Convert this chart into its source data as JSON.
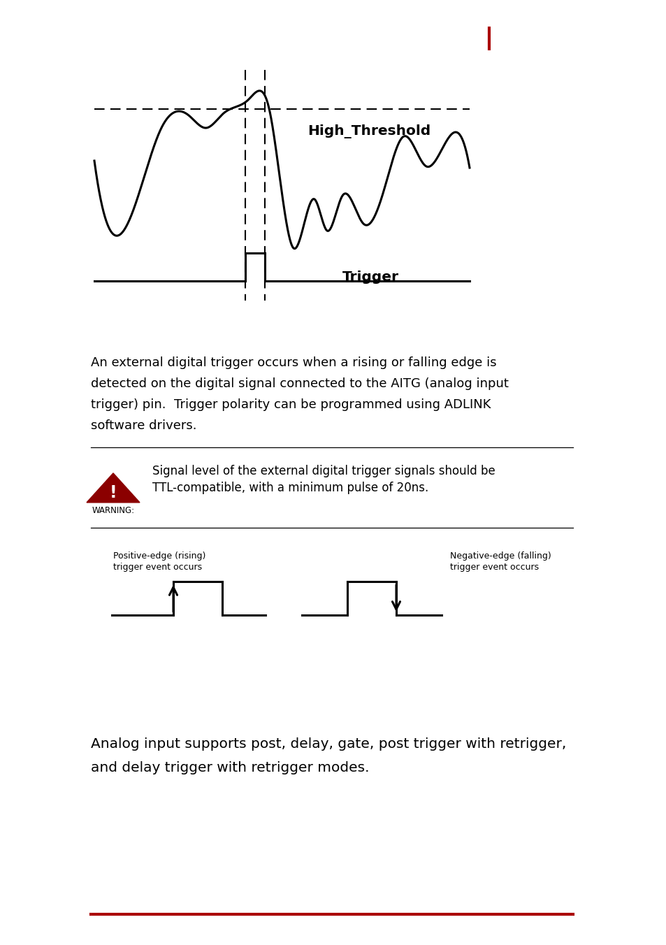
{
  "page_color": "#ffffff",
  "red_bar_color": "#aa0000",
  "page_marker_color": "#aa0000",
  "threshold_label": "High_Threshold",
  "trigger_label": "Trigger",
  "body_text_lines": [
    "An external digital trigger occurs when a rising or falling edge is",
    "detected on the digital signal connected to the AITG (analog input",
    "trigger) pin.  Trigger polarity can be programmed using ADLINK",
    "software drivers."
  ],
  "warning_text_lines": [
    "Signal level of the external digital trigger signals should be",
    "TTL-compatible, with a minimum pulse of 20ns."
  ],
  "warning_label": "WARNING:",
  "warning_color": "#8b0000",
  "pos_edge_line1": "Positive-edge (rising)",
  "pos_edge_line2": "trigger event occurs",
  "neg_edge_line1": "Negative-edge (falling)",
  "neg_edge_line2": "trigger event occurs",
  "bottom_text_lines": [
    "Analog input supports post, delay, gate, post trigger with retrigger,",
    "and delay trigger with retrigger modes."
  ],
  "text_color": "#000000",
  "line_color": "#000000"
}
